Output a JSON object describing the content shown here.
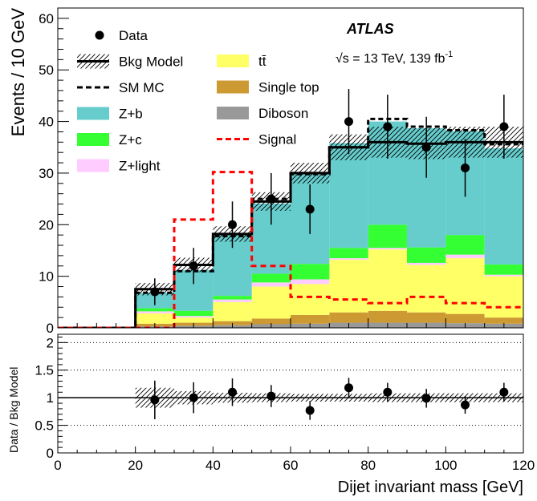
{
  "chart_data": {
    "type": "bar",
    "stacked": true,
    "title": "",
    "experiment_label": "ATLAS",
    "energy_prefix": "√s = 13 TeV, 139 fb",
    "energy_exponent": "-1",
    "xlabel": "Dijet invariant mass [GeV]",
    "ylabel": "Events / 10 GeV",
    "ratio_ylabel": "Data / Bkg Model",
    "xlim": [
      0,
      120
    ],
    "ylim": [
      0,
      62
    ],
    "ratio_ylim": [
      0,
      2.15
    ],
    "xticks": [
      0,
      20,
      40,
      60,
      80,
      100,
      120
    ],
    "yticks": [
      0,
      10,
      20,
      30,
      40,
      50,
      60
    ],
    "ratio_yticks": [
      0,
      0.5,
      1,
      1.5,
      2
    ],
    "ratio_grid": [
      0.5,
      1.5,
      2
    ],
    "bin_edges": [
      0,
      10,
      20,
      30,
      40,
      50,
      60,
      70,
      80,
      90,
      100,
      110,
      120
    ],
    "colors": {
      "zb": "#66cccc",
      "zc": "#33ff33",
      "zlight": "#ffccff",
      "ttbar": "#ffff66",
      "singletop": "#cc9933",
      "diboson": "#999999",
      "signal": "#ff0000"
    },
    "stack_order": [
      "diboson",
      "singletop",
      "ttbar",
      "zlight",
      "zc",
      "zb"
    ],
    "stack_series": [
      {
        "key": "diboson",
        "values": [
          0,
          0,
          0.3,
          0.4,
          0.5,
          0.7,
          0.8,
          1.0,
          1.0,
          1.0,
          0.9,
          0.8
        ]
      },
      {
        "key": "singletop",
        "values": [
          0,
          0,
          0.5,
          0.6,
          0.8,
          1.1,
          1.7,
          2.0,
          2.3,
          2.0,
          1.8,
          1.2
        ]
      },
      {
        "key": "ttbar",
        "values": [
          0,
          0,
          2.0,
          1.0,
          3.7,
          6.2,
          6.0,
          10.2,
          11.9,
          9.2,
          10.8,
          8.0
        ]
      },
      {
        "key": "zlight",
        "values": [
          0,
          0,
          0.4,
          0.3,
          0.5,
          0.8,
          0.9,
          0.3,
          0.3,
          0.4,
          0.7,
          0.3
        ]
      },
      {
        "key": "zc",
        "values": [
          0,
          0,
          0.6,
          1.0,
          0.7,
          1.7,
          3.0,
          2.0,
          4.5,
          3.0,
          3.8,
          2.0
        ]
      },
      {
        "key": "zb",
        "values": [
          0,
          0,
          3.0,
          7.9,
          11.8,
          13.6,
          17.5,
          20.3,
          20.0,
          23.1,
          20.1,
          22.5
        ]
      }
    ],
    "sm_mc": [
      0,
      0,
      6.8,
      11.0,
      17.8,
      25.0,
      29.8,
      35.0,
      40.5,
      39.0,
      38.3,
      35.6
    ],
    "bkg_model": [
      0,
      0,
      7.5,
      12.2,
      18.2,
      24.5,
      30.0,
      35.0,
      36.0,
      35.7,
      36.0,
      36.0
    ],
    "bkg_band": [
      0,
      0,
      1.2,
      1.4,
      1.5,
      1.8,
      2.0,
      2.5,
      3.0,
      3.0,
      3.0,
      3.0
    ],
    "signal": [
      0,
      0,
      0,
      21.0,
      30.2,
      12.0,
      6.0,
      5.5,
      4.8,
      6.0,
      4.8,
      4.0
    ],
    "data_points": [
      {
        "x": 25,
        "y": 7,
        "err": 2.6
      },
      {
        "x": 35,
        "y": 12,
        "err": 3.5
      },
      {
        "x": 45,
        "y": 20,
        "err": 4.5
      },
      {
        "x": 55,
        "y": 25,
        "err": 5.0
      },
      {
        "x": 65,
        "y": 23,
        "err": 4.8
      },
      {
        "x": 75,
        "y": 40,
        "err": 6.3
      },
      {
        "x": 85,
        "y": 39,
        "err": 6.2
      },
      {
        "x": 95,
        "y": 35,
        "err": 5.9
      },
      {
        "x": 105,
        "y": 31,
        "err": 5.6
      },
      {
        "x": 115,
        "y": 39,
        "err": 6.2
      }
    ],
    "ratio_points": [
      {
        "x": 25,
        "y": 0.96,
        "err": 0.35
      },
      {
        "x": 35,
        "y": 1.0,
        "err": 0.28
      },
      {
        "x": 45,
        "y": 1.1,
        "err": 0.25
      },
      {
        "x": 55,
        "y": 1.03,
        "err": 0.2
      },
      {
        "x": 65,
        "y": 0.77,
        "err": 0.17
      },
      {
        "x": 75,
        "y": 1.18,
        "err": 0.18
      },
      {
        "x": 85,
        "y": 1.1,
        "err": 0.17
      },
      {
        "x": 95,
        "y": 0.99,
        "err": 0.17
      },
      {
        "x": 105,
        "y": 0.87,
        "err": 0.16
      },
      {
        "x": 115,
        "y": 1.1,
        "err": 0.17
      }
    ],
    "ratio_band": [
      0,
      0,
      0.18,
      0.12,
      0.09,
      0.08,
      0.07,
      0.07,
      0.08,
      0.08,
      0.08,
      0.08
    ],
    "legend": {
      "placement": "top-left",
      "left_column": [
        {
          "key": "data",
          "label": "Data",
          "style": "marker"
        },
        {
          "key": "bkg_model",
          "label": "Bkg Model",
          "style": "hatched-line"
        },
        {
          "key": "sm_mc",
          "label": "SM MC",
          "style": "dashed-black"
        },
        {
          "key": "zb",
          "label": "Z+b",
          "style": "fill"
        },
        {
          "key": "zc",
          "label": "Z+c",
          "style": "fill"
        },
        {
          "key": "zlight",
          "label": "Z+light",
          "style": "fill"
        }
      ],
      "right_column": [
        {
          "key": "ttbar",
          "label": "tt̄",
          "style": "fill"
        },
        {
          "key": "singletop",
          "label": "Single top",
          "style": "fill"
        },
        {
          "key": "diboson",
          "label": "Diboson",
          "style": "fill"
        },
        {
          "key": "signal",
          "label": "Signal",
          "style": "dashed-red"
        }
      ]
    }
  }
}
